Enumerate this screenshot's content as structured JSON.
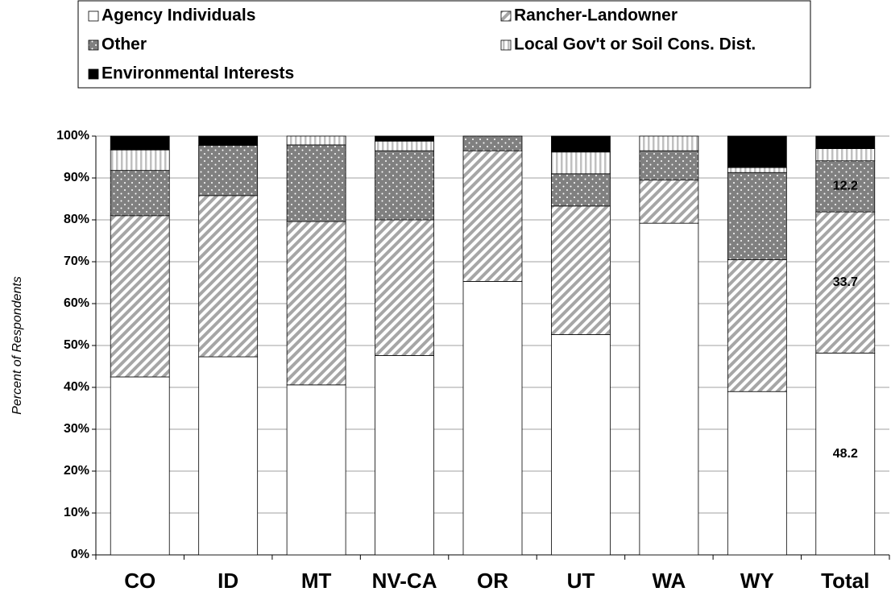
{
  "chart_data": {
    "type": "stacked_bar",
    "ylabel": "Percent of Respondents",
    "categories": [
      "CO",
      "ID",
      "MT",
      "NV-CA",
      "OR",
      "UT",
      "WA",
      "WY",
      "Total"
    ],
    "series": [
      {
        "name": "Agency Individuals",
        "color": "#ffffff",
        "values": [
          42.5,
          47.3,
          40.6,
          47.6,
          65.3,
          52.6,
          79.2,
          39.0,
          48.2
        ],
        "value_labels": [
          null,
          null,
          null,
          null,
          null,
          null,
          null,
          null,
          "48.2"
        ]
      },
      {
        "name": "Rancher-Landowner",
        "color": "#a6a6a6",
        "values": [
          38.5,
          38.5,
          39.0,
          32.4,
          31.2,
          30.7,
          10.3,
          31.5,
          33.7
        ],
        "value_labels": [
          null,
          null,
          null,
          null,
          null,
          null,
          null,
          null,
          "33.7"
        ]
      },
      {
        "name": "Other",
        "color": "#808080",
        "values": [
          10.8,
          12.0,
          18.3,
          16.5,
          3.5,
          7.7,
          7.0,
          20.8,
          12.2
        ],
        "value_labels": [
          null,
          null,
          null,
          null,
          null,
          null,
          null,
          null,
          "12.2"
        ]
      },
      {
        "name": "Local Gov't or Soil Cons. Dist.",
        "color": "#c0c0c0",
        "values": [
          4.9,
          0,
          2.1,
          2.3,
          0,
          5.2,
          3.5,
          1.2,
          2.9
        ]
      },
      {
        "name": "Environmental Interests",
        "color": "#000000",
        "values": [
          3.3,
          2.2,
          0,
          1.2,
          0,
          3.8,
          0,
          7.5,
          3.0
        ]
      }
    ],
    "ylim": [
      0,
      100
    ],
    "yticks": [
      {
        "value": 0,
        "label": "0%"
      },
      {
        "value": 10,
        "label": "10%"
      },
      {
        "value": 20,
        "label": "20%"
      },
      {
        "value": 30,
        "label": "30%"
      },
      {
        "value": 40,
        "label": "40%"
      },
      {
        "value": 50,
        "label": "50%"
      },
      {
        "value": 60,
        "label": "60%"
      },
      {
        "value": 70,
        "label": "70%"
      },
      {
        "value": 80,
        "label": "80%"
      },
      {
        "value": 90,
        "label": "90%"
      },
      {
        "value": 100,
        "label": "100%"
      }
    ],
    "grid": true,
    "legend": "top"
  }
}
